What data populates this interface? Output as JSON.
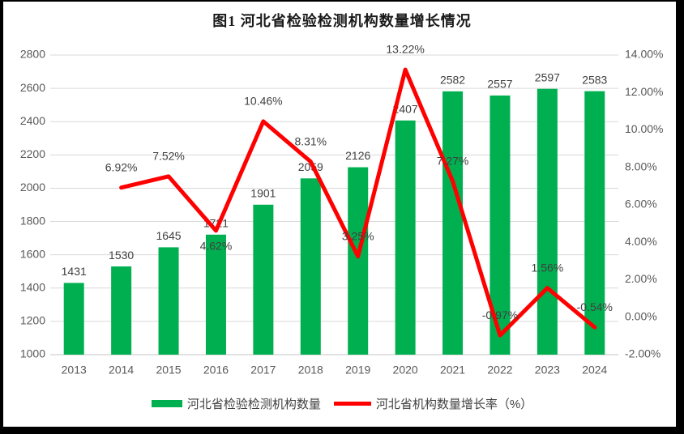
{
  "title": "图1  河北省检验检测机构数量增长情况",
  "legend": {
    "bar_label": "河北省检验检测机构数量",
    "line_label": "河北省机构数量增长率（%）"
  },
  "chart_data": {
    "type": "bar+line-combo",
    "title": "图1  河北省检验检测机构数量增长情况",
    "categories": [
      "2013",
      "2014",
      "2015",
      "2016",
      "2017",
      "2018",
      "2019",
      "2020",
      "2021",
      "2022",
      "2023",
      "2024"
    ],
    "series": [
      {
        "name": "河北省检验检测机构数量",
        "type": "bar",
        "axis": "left",
        "color": "#00B050",
        "values": [
          1431,
          1530,
          1645,
          1721,
          1901,
          2059,
          2126,
          2407,
          2582,
          2557,
          2597,
          2583
        ],
        "labels": [
          "1431",
          "1530",
          "1645",
          "1721",
          "1901",
          "2059",
          "2126",
          "2407",
          "2582",
          "2557",
          "2597",
          "2583"
        ]
      },
      {
        "name": "河北省机构数量增长率（%）",
        "type": "line",
        "axis": "right",
        "color": "#FF0000",
        "values": [
          null,
          6.92,
          7.52,
          4.62,
          10.46,
          8.31,
          3.25,
          13.22,
          7.27,
          -0.97,
          1.56,
          -0.54
        ],
        "labels": [
          null,
          "6.92%",
          "7.52%",
          "4.62%",
          "10.46%",
          "8.31%",
          "3.25%",
          "13.22%",
          "7.27%",
          "-0.97%",
          "1.56%",
          "-0.54%"
        ],
        "label_side": [
          null,
          "above",
          "above",
          "below",
          "above",
          "above",
          "above",
          "above",
          "above",
          "above",
          "above",
          "above"
        ]
      }
    ],
    "left_axis": {
      "min": 1000,
      "max": 2800,
      "step": 200,
      "ticks": [
        "1000",
        "1200",
        "1400",
        "1600",
        "1800",
        "2000",
        "2200",
        "2400",
        "2600",
        "2800"
      ]
    },
    "right_axis": {
      "min": -2,
      "max": 14,
      "step": 2,
      "ticks": [
        "-2.00%",
        "0.00%",
        "2.00%",
        "4.00%",
        "6.00%",
        "8.00%",
        "10.00%",
        "12.00%",
        "14.00%"
      ]
    },
    "grid": "on",
    "legend_position": "bottom",
    "colors": {
      "grid": "#D9D9D9",
      "axis_line": "#C6C6C6",
      "tick_label": "#595959",
      "data_label": "#404040",
      "frame_border": "#000000"
    }
  }
}
